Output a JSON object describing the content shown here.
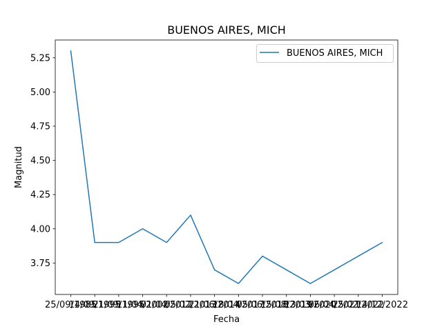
{
  "chart_data": {
    "type": "line",
    "title": "BUENOS AIRES, MICH",
    "xlabel": "Fecha",
    "ylabel": "Magnitud",
    "categories": [
      "25/09/1985",
      "14/09/1995",
      "21/09/1995",
      "11/04/2002",
      "01/04/2012",
      "05/02/2013",
      "21/06/2014",
      "18/04/2017",
      "05/06/2018",
      "15/08/2019",
      "13/03/2020",
      "06/04/2021",
      "25/02/2022",
      "14/12/2022"
    ],
    "x_tick_labels": [
      "25/09/1985",
      "14/09/1995",
      "21/09/1995",
      "11/04/2002",
      "01/04/2012",
      "05/02/2013",
      "21/06/2014",
      "18/04/2017",
      "05/06/2018",
      "15/08/2019",
      "13/03/2020",
      "06/04/2021",
      "25/02/2022",
      "14/12/2022"
    ],
    "series": [
      {
        "name": "BUENOS AIRES, MICH",
        "color": "#1f77b4",
        "values": [
          5.3,
          3.9,
          3.9,
          4.0,
          3.9,
          4.1,
          3.7,
          3.6,
          3.8,
          3.7,
          3.6,
          3.7,
          3.8,
          3.9
        ]
      }
    ],
    "ylim": [
      3.52,
      5.38
    ],
    "y_ticks": [
      3.75,
      4.0,
      4.25,
      4.5,
      4.75,
      5.0,
      5.25
    ],
    "y_tick_labels": [
      "3.75",
      "4.00",
      "4.25",
      "4.50",
      "4.75",
      "5.00",
      "5.25"
    ],
    "grid": false,
    "legend_position": "top-right"
  }
}
